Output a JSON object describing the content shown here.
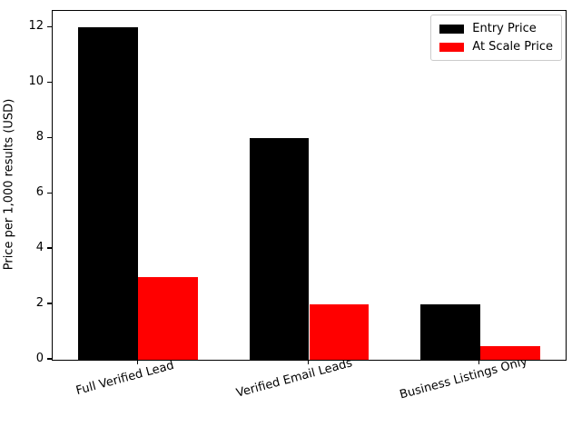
{
  "figure": {
    "background": "#ffffff",
    "axis_color": "#000000"
  },
  "chart_data": {
    "type": "bar",
    "title": "",
    "xlabel": "",
    "ylabel": "Price per 1,000 results (USD)",
    "categories": [
      "Full Verified Lead",
      "Verified Email Leads",
      "Business Listings Only"
    ],
    "series": [
      {
        "name": "Entry Price",
        "color": "#000000",
        "values": [
          12,
          8,
          2
        ]
      },
      {
        "name": "At Scale Price",
        "color": "#ff0000",
        "values": [
          3,
          2,
          0.5
        ]
      }
    ],
    "yticks": [
      0,
      2,
      4,
      6,
      8,
      10,
      12
    ],
    "ylim": [
      0,
      12.6
    ],
    "grid": false,
    "legend_position": "upper right",
    "bar_width_fraction": 0.35,
    "xtick_rotation_deg": 15
  }
}
